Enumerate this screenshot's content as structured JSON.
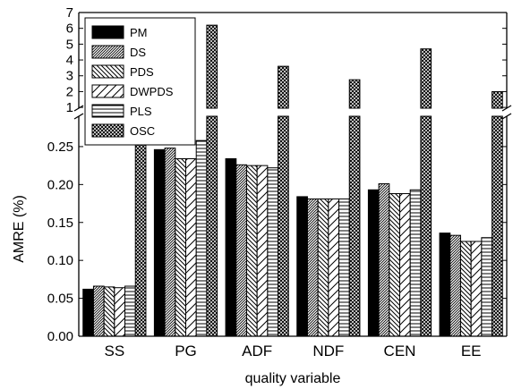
{
  "chart_data": {
    "type": "bar",
    "xlabel": "quality variable",
    "ylabel": "AMRE (%)",
    "categories": [
      "SS",
      "PG",
      "ADF",
      "NDF",
      "CEN",
      "EE"
    ],
    "series": [
      {
        "name": "PM",
        "pattern": "solid",
        "values": [
          0.062,
          0.246,
          0.234,
          0.184,
          0.193,
          0.136
        ]
      },
      {
        "name": "DS",
        "pattern": "fine-diagonal",
        "values": [
          0.066,
          0.248,
          0.226,
          0.181,
          0.201,
          0.133
        ]
      },
      {
        "name": "PDS",
        "pattern": "back-diagonal",
        "values": [
          0.065,
          0.234,
          0.225,
          0.181,
          0.188,
          0.125
        ]
      },
      {
        "name": "DWPDS",
        "pattern": "wide-diagonal",
        "values": [
          0.064,
          0.234,
          0.225,
          0.181,
          0.188,
          0.125
        ]
      },
      {
        "name": "PLS",
        "pattern": "horizontal",
        "values": [
          0.066,
          0.258,
          0.222,
          0.181,
          0.193,
          0.13
        ]
      },
      {
        "name": "OSC",
        "pattern": "crosshatch",
        "values": [
          0.29,
          6.2,
          3.6,
          2.75,
          4.7,
          2.0
        ]
      }
    ],
    "axis": {
      "broken": true,
      "lower_range": [
        0,
        0.29
      ],
      "upper_range": [
        0.95,
        7
      ],
      "lower_ticks": [
        "0.00",
        "0.05",
        "0.10",
        "0.15",
        "0.20",
        "0.25"
      ],
      "upper_ticks": [
        "1",
        "2",
        "3",
        "4",
        "5",
        "6",
        "7"
      ]
    },
    "legend_position": "top-left",
    "grid": false
  }
}
